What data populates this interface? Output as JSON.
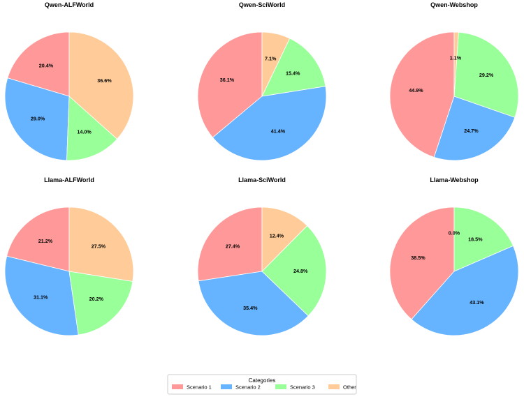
{
  "chart_data": {
    "type": "pie",
    "legend": {
      "title": "Categories",
      "placement": "bottom-center",
      "entries": [
        "Scenario 1",
        "Scenario 2",
        "Scenario 3",
        "Other"
      ]
    },
    "colors": {
      "Scenario 1": "#ff9999",
      "Scenario 2": "#66b3ff",
      "Scenario 3": "#99ff99",
      "Other": "#ffcc99"
    },
    "start_angle_deg": 90,
    "direction": "counterclockwise",
    "charts": [
      {
        "title": "Qwen-ALFWorld",
        "slices": [
          {
            "category": "Scenario 1",
            "value": 20.4,
            "label": "20.4%"
          },
          {
            "category": "Scenario 2",
            "value": 29.0,
            "label": "29.0%"
          },
          {
            "category": "Scenario 3",
            "value": 14.0,
            "label": "14.0%"
          },
          {
            "category": "Other",
            "value": 36.6,
            "label": "36.6%"
          }
        ]
      },
      {
        "title": "Qwen-SciWorld",
        "slices": [
          {
            "category": "Scenario 1",
            "value": 36.1,
            "label": "36.1%"
          },
          {
            "category": "Scenario 2",
            "value": 41.4,
            "label": "41.4%"
          },
          {
            "category": "Scenario 3",
            "value": 15.4,
            "label": "15.4%"
          },
          {
            "category": "Other",
            "value": 7.1,
            "label": "7.1%"
          }
        ]
      },
      {
        "title": "Qwen-Webshop",
        "slices": [
          {
            "category": "Scenario 1",
            "value": 44.9,
            "label": "44.9%"
          },
          {
            "category": "Scenario 2",
            "value": 24.7,
            "label": "24.7%"
          },
          {
            "category": "Scenario 3",
            "value": 29.2,
            "label": "29.2%"
          },
          {
            "category": "Other",
            "value": 1.1,
            "label": "1.1%"
          }
        ]
      },
      {
        "title": "Llama-ALFWorld",
        "slices": [
          {
            "category": "Scenario 1",
            "value": 21.2,
            "label": "21.2%"
          },
          {
            "category": "Scenario 2",
            "value": 31.1,
            "label": "31.1%"
          },
          {
            "category": "Scenario 3",
            "value": 20.2,
            "label": "20.2%"
          },
          {
            "category": "Other",
            "value": 27.5,
            "label": "27.5%"
          }
        ]
      },
      {
        "title": "Llama-SciWorld",
        "slices": [
          {
            "category": "Scenario 1",
            "value": 27.4,
            "label": "27.4%"
          },
          {
            "category": "Scenario 2",
            "value": 35.4,
            "label": "35.4%"
          },
          {
            "category": "Scenario 3",
            "value": 24.8,
            "label": "24.8%"
          },
          {
            "category": "Other",
            "value": 12.4,
            "label": "12.4%"
          }
        ]
      },
      {
        "title": "Llama-Webshop",
        "slices": [
          {
            "category": "Scenario 1",
            "value": 38.5,
            "label": "38.5%"
          },
          {
            "category": "Scenario 2",
            "value": 43.1,
            "label": "43.1%"
          },
          {
            "category": "Scenario 3",
            "value": 18.5,
            "label": "18.5%"
          },
          {
            "category": "Other",
            "value": 0.0,
            "label": "0.0%"
          }
        ]
      }
    ]
  }
}
